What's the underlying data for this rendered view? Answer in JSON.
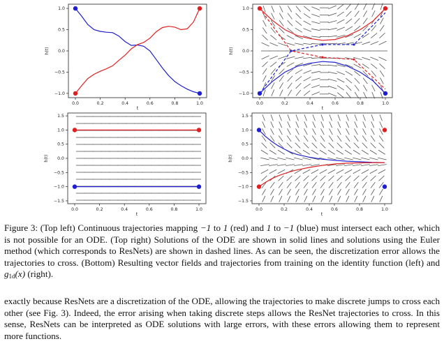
{
  "figure": {
    "panels": [
      {
        "id": "top-left",
        "ylabel": "h(t)",
        "xlabel": "t",
        "xticks": [
          "0.0",
          "0.2",
          "0.4",
          "0.6",
          "0.8",
          "1.0"
        ],
        "yticks": [
          "1.0",
          "0.5",
          "0.0",
          "−0.5",
          "−1.0"
        ]
      },
      {
        "id": "top-right",
        "ylabel": "h(t)",
        "xlabel": "t",
        "xticks": [
          "0.0",
          "0.2",
          "0.4",
          "0.6",
          "0.8",
          "1.0"
        ],
        "yticks": [
          "1.0",
          "0.5",
          "0.0",
          "−0.5",
          "−1.0"
        ]
      },
      {
        "id": "bottom-left",
        "ylabel": "h(t)",
        "xlabel": "t",
        "xticks": [
          "0.0",
          "0.2",
          "0.4",
          "0.6",
          "0.8",
          "1.0"
        ],
        "yticks": [
          "1.5",
          "1.0",
          "0.5",
          "0.0",
          "−0.5",
          "−1.0",
          "−1.5"
        ]
      },
      {
        "id": "bottom-right",
        "ylabel": "h(t)",
        "xlabel": "t",
        "xticks": [
          "0.0",
          "0.2",
          "0.4",
          "0.6",
          "0.8",
          "1.0"
        ],
        "yticks": [
          "1.5",
          "1.0",
          "0.5",
          "0.0",
          "−0.5",
          "−1.0",
          "−1.5"
        ]
      }
    ]
  },
  "caption": {
    "lead": "Figure 3: (Top left) Continuous trajectories mapping ",
    "m1": "−1",
    "p2": " to ",
    "m2": "1",
    "p3": " (red) and ",
    "m3": "1",
    "p4": " to ",
    "m4": "−1",
    "p5": " (blue) must intersect each other, which is not possible for an ODE. (Top right) Solutions of the ODE are shown in solid lines and solutions using the Euler method (which corresponds to ResNets) are shown in dashed lines. As can be seen, the discretization error allows the trajectories to cross. (Bottom) Resulting vector fields and trajectories from training on the identity function (left) and ",
    "g_main": "g",
    "g_sub": "1d",
    "g_arg": "(x)",
    "tail": " (right)."
  },
  "body_text": "exactly because ResNets are a discretization of the ODE, allowing the trajectories to make discrete jumps to cross each other (see Fig. 3). Indeed, the error arising when taking discrete steps allows the ResNet trajectories to cross. In this sense, ResNets can be interpreted as ODE solutions with large errors, with these errors allowing them to represent more functions.",
  "chart_data": [
    {
      "type": "line",
      "panel": "top-left",
      "xlabel": "t",
      "ylabel": "h(t)",
      "xlim": [
        0,
        1
      ],
      "ylim": [
        -1.1,
        1.1
      ],
      "series": [
        {
          "color": "#1f1fd0",
          "style": "solid",
          "x": [
            0,
            0.05,
            0.1,
            0.15,
            0.2,
            0.25,
            0.3,
            0.35,
            0.4,
            0.45,
            0.5,
            0.55,
            0.6,
            0.65,
            0.7,
            0.75,
            0.8,
            0.85,
            0.9,
            0.95,
            1.0
          ],
          "y": [
            1.0,
            0.82,
            0.62,
            0.5,
            0.46,
            0.44,
            0.43,
            0.35,
            0.22,
            0.13,
            0.14,
            0.11,
            0.0,
            -0.2,
            -0.4,
            -0.58,
            -0.72,
            -0.82,
            -0.9,
            -0.96,
            -1.0
          ]
        },
        {
          "color": "#e02020",
          "style": "solid",
          "x": [
            0,
            0.05,
            0.1,
            0.15,
            0.2,
            0.25,
            0.3,
            0.35,
            0.4,
            0.45,
            0.5,
            0.55,
            0.6,
            0.65,
            0.7,
            0.75,
            0.8,
            0.85,
            0.9,
            0.95,
            1.0
          ],
          "y": [
            -1.0,
            -0.82,
            -0.65,
            -0.55,
            -0.48,
            -0.42,
            -0.35,
            -0.22,
            -0.1,
            0.05,
            0.15,
            0.2,
            0.3,
            0.45,
            0.55,
            0.58,
            0.56,
            0.5,
            0.52,
            0.68,
            1.0
          ]
        }
      ],
      "endpoints": [
        {
          "x": 0,
          "y": 1.0,
          "color": "#1f1fd0"
        },
        {
          "x": 1,
          "y": -1.0,
          "color": "#1f1fd0"
        },
        {
          "x": 0,
          "y": -1.0,
          "color": "#e02020"
        },
        {
          "x": 1,
          "y": 1.0,
          "color": "#e02020"
        }
      ],
      "quiver": false
    },
    {
      "type": "line",
      "panel": "top-right",
      "xlabel": "t",
      "ylabel": "h(t)",
      "xlim": [
        0,
        1
      ],
      "ylim": [
        -1.1,
        1.1
      ],
      "series": [
        {
          "color": "#e02020",
          "style": "solid",
          "x": [
            0,
            0.1,
            0.2,
            0.3,
            0.4,
            0.5,
            0.6,
            0.7,
            0.8,
            0.9,
            1.0
          ],
          "y": [
            1.0,
            0.72,
            0.5,
            0.36,
            0.29,
            0.25,
            0.27,
            0.36,
            0.5,
            0.7,
            1.0
          ]
        },
        {
          "color": "#1f1fd0",
          "style": "solid",
          "x": [
            0,
            0.1,
            0.2,
            0.3,
            0.4,
            0.5,
            0.6,
            0.7,
            0.8,
            0.9,
            1.0
          ],
          "y": [
            -1.0,
            -0.72,
            -0.5,
            -0.36,
            -0.29,
            -0.25,
            -0.27,
            -0.36,
            -0.5,
            -0.7,
            -1.0
          ]
        },
        {
          "color": "#e02020",
          "style": "dashed",
          "x": [
            0,
            0.25,
            0.5,
            0.75,
            1.0
          ],
          "y": [
            1.0,
            0.0,
            -0.15,
            -0.2,
            -0.9
          ]
        },
        {
          "color": "#1f1fd0",
          "style": "dashed",
          "x": [
            0,
            0.25,
            0.5,
            0.75,
            1.0
          ],
          "y": [
            -1.0,
            0.0,
            0.15,
            0.15,
            0.9
          ]
        }
      ],
      "endpoints": [
        {
          "x": 0,
          "y": 1.0,
          "color": "#e02020"
        },
        {
          "x": 1,
          "y": 1.0,
          "color": "#e02020"
        },
        {
          "x": 0,
          "y": -1.0,
          "color": "#1f1fd0"
        },
        {
          "x": 1,
          "y": -1.0,
          "color": "#1f1fd0"
        }
      ],
      "quiver": true
    },
    {
      "type": "line",
      "panel": "bottom-left",
      "xlabel": "t",
      "ylabel": "h(t)",
      "xlim": [
        0,
        1
      ],
      "ylim": [
        -1.6,
        1.6
      ],
      "series": [
        {
          "color": "#e02020",
          "style": "solid",
          "x": [
            0,
            1.0
          ],
          "y": [
            1.0,
            1.0
          ]
        },
        {
          "color": "#1f1fd0",
          "style": "solid",
          "x": [
            0,
            1.0
          ],
          "y": [
            -1.0,
            -1.0
          ]
        }
      ],
      "endpoints": [
        {
          "x": 0,
          "y": 1.0,
          "color": "#e02020"
        },
        {
          "x": 1,
          "y": 1.0,
          "color": "#e02020"
        },
        {
          "x": 0,
          "y": -1.0,
          "color": "#1f1fd0"
        },
        {
          "x": 1,
          "y": -1.0,
          "color": "#1f1fd0"
        }
      ],
      "quiver": true
    },
    {
      "type": "line",
      "panel": "bottom-right",
      "xlabel": "t",
      "ylabel": "h(t)",
      "xlim": [
        0,
        1
      ],
      "ylim": [
        -1.6,
        1.6
      ],
      "series": [
        {
          "color": "#1f1fd0",
          "style": "solid",
          "x": [
            0,
            0.05,
            0.1,
            0.15,
            0.2,
            0.25,
            0.3,
            0.4,
            0.5,
            0.6,
            0.7,
            0.8,
            0.9,
            1.0
          ],
          "y": [
            1.0,
            0.78,
            0.6,
            0.45,
            0.33,
            0.22,
            0.14,
            0.04,
            -0.03,
            -0.07,
            -0.1,
            -0.12,
            -0.14,
            -0.15
          ]
        },
        {
          "color": "#e02020",
          "style": "solid",
          "x": [
            0,
            0.05,
            0.1,
            0.15,
            0.2,
            0.25,
            0.3,
            0.4,
            0.5,
            0.6,
            0.7,
            0.8,
            0.9,
            1.0
          ],
          "y": [
            -1.0,
            -0.85,
            -0.72,
            -0.62,
            -0.54,
            -0.47,
            -0.41,
            -0.32,
            -0.25,
            -0.2,
            -0.17,
            -0.16,
            -0.15,
            -0.15
          ]
        }
      ],
      "endpoints": [
        {
          "x": 0,
          "y": 1.0,
          "color": "#1f1fd0"
        },
        {
          "x": 0,
          "y": -1.0,
          "color": "#e02020"
        },
        {
          "x": 1,
          "y": 1.0,
          "color": "#e02020"
        },
        {
          "x": 1,
          "y": -1.0,
          "color": "#1f1fd0"
        }
      ],
      "quiver": true
    }
  ]
}
